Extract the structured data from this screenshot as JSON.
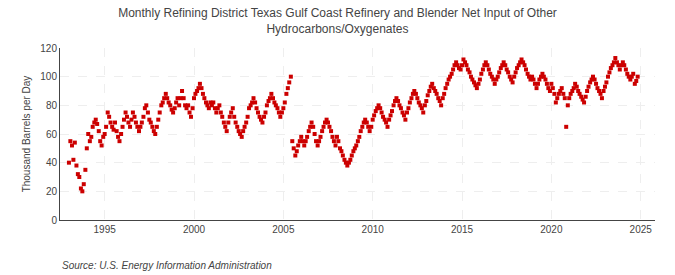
{
  "chart_data": {
    "type": "scatter",
    "title": "Monthly Refining District Texas Gulf Coast Refinery and Blender Net Input of Other\nHydrocarbons/Oxygenates",
    "ylabel": "Thousand Barrels per Day",
    "annotations": [
      "Source: U.S. Energy Information Administration"
    ],
    "color": "#cc0000",
    "marker": "square",
    "grid": true,
    "xlim": [
      1992.5,
      2025.8
    ],
    "xticks": [
      1995,
      2000,
      2005,
      2010,
      2015,
      2020,
      2025
    ],
    "ylim": [
      0,
      120
    ],
    "yticks": [
      0,
      20,
      40,
      60,
      80,
      100,
      120
    ],
    "x": [
      1993.0,
      1993.08,
      1993.17,
      1993.25,
      1993.33,
      1993.42,
      1993.5,
      1993.58,
      1993.67,
      1993.75,
      1993.83,
      1993.92,
      1994.0,
      1994.08,
      1994.17,
      1994.25,
      1994.33,
      1994.42,
      1994.5,
      1994.58,
      1994.67,
      1994.75,
      1994.83,
      1994.92,
      1995.0,
      1995.08,
      1995.17,
      1995.25,
      1995.33,
      1995.42,
      1995.5,
      1995.58,
      1995.67,
      1995.75,
      1995.83,
      1995.92,
      1996.0,
      1996.08,
      1996.17,
      1996.25,
      1996.33,
      1996.42,
      1996.5,
      1996.58,
      1996.67,
      1996.75,
      1996.83,
      1996.92,
      1997.0,
      1997.08,
      1997.17,
      1997.25,
      1997.33,
      1997.42,
      1997.5,
      1997.58,
      1997.67,
      1997.75,
      1997.83,
      1997.92,
      1998.0,
      1998.08,
      1998.17,
      1998.25,
      1998.33,
      1998.42,
      1998.5,
      1998.58,
      1998.67,
      1998.75,
      1998.83,
      1998.92,
      1999.0,
      1999.08,
      1999.17,
      1999.25,
      1999.33,
      1999.42,
      1999.5,
      1999.58,
      1999.67,
      1999.75,
      1999.83,
      1999.92,
      2000.0,
      2000.08,
      2000.17,
      2000.25,
      2000.33,
      2000.42,
      2000.5,
      2000.58,
      2000.67,
      2000.75,
      2000.83,
      2000.92,
      2001.0,
      2001.08,
      2001.17,
      2001.25,
      2001.33,
      2001.42,
      2001.5,
      2001.58,
      2001.67,
      2001.75,
      2001.83,
      2001.92,
      2002.0,
      2002.08,
      2002.17,
      2002.25,
      2002.33,
      2002.42,
      2002.5,
      2002.58,
      2002.67,
      2002.75,
      2002.83,
      2002.92,
      2003.0,
      2003.08,
      2003.17,
      2003.25,
      2003.33,
      2003.42,
      2003.5,
      2003.58,
      2003.67,
      2003.75,
      2003.83,
      2003.92,
      2004.0,
      2004.08,
      2004.17,
      2004.25,
      2004.33,
      2004.42,
      2004.5,
      2004.58,
      2004.67,
      2004.75,
      2004.83,
      2004.92,
      2005.0,
      2005.08,
      2005.17,
      2005.25,
      2005.33,
      2005.42,
      2005.5,
      2005.58,
      2005.67,
      2005.75,
      2005.83,
      2005.92,
      2006.0,
      2006.08,
      2006.17,
      2006.25,
      2006.33,
      2006.42,
      2006.5,
      2006.58,
      2006.67,
      2006.75,
      2006.83,
      2006.92,
      2007.0,
      2007.08,
      2007.17,
      2007.25,
      2007.33,
      2007.42,
      2007.5,
      2007.58,
      2007.67,
      2007.75,
      2007.83,
      2007.92,
      2008.0,
      2008.08,
      2008.17,
      2008.25,
      2008.33,
      2008.42,
      2008.5,
      2008.58,
      2008.67,
      2008.75,
      2008.83,
      2008.92,
      2009.0,
      2009.08,
      2009.17,
      2009.25,
      2009.33,
      2009.42,
      2009.5,
      2009.58,
      2009.67,
      2009.75,
      2009.83,
      2009.92,
      2010.0,
      2010.08,
      2010.17,
      2010.25,
      2010.33,
      2010.42,
      2010.5,
      2010.58,
      2010.67,
      2010.75,
      2010.83,
      2010.92,
      2011.0,
      2011.08,
      2011.17,
      2011.25,
      2011.33,
      2011.42,
      2011.5,
      2011.58,
      2011.67,
      2011.75,
      2011.83,
      2011.92,
      2012.0,
      2012.08,
      2012.17,
      2012.25,
      2012.33,
      2012.42,
      2012.5,
      2012.58,
      2012.67,
      2012.75,
      2012.83,
      2012.92,
      2013.0,
      2013.08,
      2013.17,
      2013.25,
      2013.33,
      2013.42,
      2013.5,
      2013.58,
      2013.67,
      2013.75,
      2013.83,
      2013.92,
      2014.0,
      2014.08,
      2014.17,
      2014.25,
      2014.33,
      2014.42,
      2014.5,
      2014.58,
      2014.67,
      2014.75,
      2014.83,
      2014.92,
      2015.0,
      2015.08,
      2015.17,
      2015.25,
      2015.33,
      2015.42,
      2015.5,
      2015.58,
      2015.67,
      2015.75,
      2015.83,
      2015.92,
      2016.0,
      2016.08,
      2016.17,
      2016.25,
      2016.33,
      2016.42,
      2016.5,
      2016.58,
      2016.67,
      2016.75,
      2016.83,
      2016.92,
      2017.0,
      2017.08,
      2017.17,
      2017.25,
      2017.33,
      2017.42,
      2017.5,
      2017.58,
      2017.67,
      2017.75,
      2017.83,
      2017.92,
      2018.0,
      2018.08,
      2018.17,
      2018.25,
      2018.33,
      2018.42,
      2018.5,
      2018.58,
      2018.67,
      2018.75,
      2018.83,
      2018.92,
      2019.0,
      2019.08,
      2019.17,
      2019.25,
      2019.33,
      2019.42,
      2019.5,
      2019.58,
      2019.67,
      2019.75,
      2019.83,
      2019.92,
      2020.0,
      2020.08,
      2020.17,
      2020.25,
      2020.33,
      2020.42,
      2020.5,
      2020.58,
      2020.67,
      2020.75,
      2020.83,
      2020.92,
      2021.0,
      2021.08,
      2021.17,
      2021.25,
      2021.33,
      2021.42,
      2021.5,
      2021.58,
      2021.67,
      2021.75,
      2021.83,
      2021.92,
      2022.0,
      2022.08,
      2022.17,
      2022.25,
      2022.33,
      2022.42,
      2022.5,
      2022.58,
      2022.67,
      2022.75,
      2022.83,
      2022.92,
      2023.0,
      2023.08,
      2023.17,
      2023.25,
      2023.33,
      2023.42,
      2023.5,
      2023.58,
      2023.67,
      2023.75,
      2023.83,
      2023.92,
      2024.0,
      2024.08,
      2024.17,
      2024.25,
      2024.33,
      2024.42,
      2024.5,
      2024.58,
      2024.67,
      2024.75,
      2024.83
    ],
    "values": [
      40,
      55,
      52,
      42,
      54,
      38,
      32,
      30,
      22,
      20,
      25,
      35,
      50,
      60,
      55,
      58,
      65,
      68,
      70,
      67,
      62,
      55,
      52,
      58,
      60,
      65,
      75,
      72,
      68,
      65,
      63,
      68,
      62,
      58,
      55,
      60,
      65,
      70,
      75,
      72,
      68,
      65,
      70,
      75,
      72,
      68,
      65,
      62,
      65,
      68,
      72,
      78,
      80,
      75,
      70,
      68,
      65,
      62,
      60,
      65,
      70,
      75,
      80,
      82,
      85,
      88,
      85,
      82,
      80,
      77,
      75,
      78,
      82,
      85,
      80,
      85,
      90,
      85,
      80,
      78,
      80,
      75,
      72,
      78,
      85,
      88,
      90,
      92,
      95,
      92,
      88,
      85,
      82,
      80,
      78,
      82,
      80,
      82,
      78,
      75,
      78,
      80,
      75,
      72,
      68,
      65,
      62,
      68,
      72,
      75,
      78,
      72,
      68,
      65,
      62,
      60,
      58,
      62,
      65,
      68,
      72,
      78,
      80,
      82,
      85,
      82,
      78,
      75,
      72,
      70,
      68,
      72,
      75,
      80,
      83,
      85,
      88,
      85,
      82,
      80,
      78,
      75,
      72,
      75,
      78,
      82,
      88,
      92,
      96,
      100,
      55,
      50,
      45,
      48,
      52,
      55,
      58,
      55,
      52,
      55,
      58,
      62,
      65,
      68,
      65,
      60,
      55,
      52,
      55,
      58,
      62,
      65,
      68,
      70,
      68,
      65,
      62,
      58,
      55,
      52,
      58,
      55,
      50,
      48,
      45,
      42,
      40,
      38,
      40,
      42,
      45,
      48,
      50,
      52,
      55,
      58,
      62,
      65,
      68,
      70,
      68,
      65,
      62,
      65,
      70,
      73,
      76,
      78,
      80,
      78,
      75,
      72,
      70,
      68,
      65,
      70,
      73,
      76,
      80,
      83,
      85,
      83,
      80,
      78,
      75,
      73,
      70,
      75,
      78,
      82,
      85,
      88,
      90,
      88,
      85,
      82,
      80,
      78,
      75,
      80,
      83,
      87,
      90,
      93,
      95,
      92,
      90,
      88,
      85,
      83,
      80,
      85,
      88,
      92,
      95,
      98,
      100,
      102,
      105,
      108,
      110,
      108,
      106,
      105,
      108,
      112,
      110,
      108,
      105,
      103,
      100,
      98,
      96,
      94,
      92,
      95,
      98,
      102,
      105,
      108,
      110,
      108,
      105,
      102,
      100,
      98,
      95,
      98,
      100,
      103,
      106,
      108,
      110,
      108,
      105,
      103,
      100,
      98,
      96,
      100,
      103,
      106,
      108,
      110,
      112,
      110,
      108,
      105,
      102,
      100,
      98,
      100,
      98,
      95,
      92,
      95,
      98,
      100,
      102,
      100,
      98,
      95,
      92,
      90,
      95,
      92,
      88,
      82,
      85,
      88,
      90,
      92,
      88,
      85,
      65,
      80,
      85,
      88,
      90,
      92,
      95,
      93,
      90,
      88,
      86,
      84,
      82,
      86,
      90,
      93,
      96,
      98,
      100,
      98,
      95,
      92,
      90,
      88,
      85,
      90,
      93,
      96,
      100,
      103,
      106,
      108,
      110,
      113,
      110,
      108,
      105,
      108,
      110,
      108,
      105,
      102,
      100,
      98,
      100,
      102,
      95,
      97,
      100
    ]
  }
}
